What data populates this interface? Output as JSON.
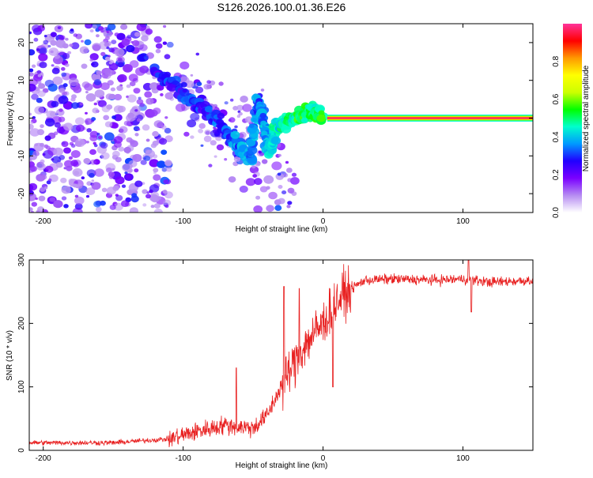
{
  "chart_data": [
    {
      "type": "heatmap",
      "title": "S126.2026.100.01.36.E26",
      "xlabel": "Height of straight line (km)",
      "ylabel": "Frequency (Hz)",
      "xlim": [
        -210,
        150
      ],
      "ylim": [
        -25,
        25
      ],
      "xticks": [
        -200,
        -100,
        0,
        100
      ],
      "yticks": [
        -20,
        -10,
        0,
        10,
        20
      ],
      "colorbar": {
        "label": "Normalized spectral amplitude",
        "range": [
          0,
          1
        ],
        "ticks": [
          "0.0",
          "0.2",
          "0.4",
          "0.6",
          "0.8"
        ],
        "tick_values": [
          0,
          0.2,
          0.4,
          0.6,
          0.8
        ],
        "colors": [
          "#ffffff",
          "#b68cf2",
          "#7a00ff",
          "#2000ff",
          "#0099ff",
          "#00ffcc",
          "#00ff00",
          "#ccff00",
          "#ffff00",
          "#ff9900",
          "#ff0000",
          "#ff3399"
        ]
      },
      "ridge": [
        {
          "x": -120,
          "y": 12,
          "a": 0.35
        },
        {
          "x": -95,
          "y": 5,
          "a": 0.35
        },
        {
          "x": -80,
          "y": 1,
          "a": 0.35
        },
        {
          "x": -65,
          "y": -5,
          "a": 0.4
        },
        {
          "x": -52,
          "y": -11,
          "a": 0.45
        },
        {
          "x": -47,
          "y": 5,
          "a": 0.4
        },
        {
          "x": -42,
          "y": -2,
          "a": 0.45
        },
        {
          "x": -38,
          "y": -9,
          "a": 0.5
        },
        {
          "x": -33,
          "y": -2,
          "a": 0.5
        },
        {
          "x": -25,
          "y": -1,
          "a": 0.55
        },
        {
          "x": -15,
          "y": 0.5,
          "a": 0.6
        },
        {
          "x": -8,
          "y": 2,
          "a": 0.55
        },
        {
          "x": 0,
          "y": 0.5,
          "a": 0.6
        }
      ],
      "tone": {
        "x_start": 3,
        "x_end": 150,
        "freq": 0,
        "amplitude": 1.0
      }
    },
    {
      "type": "line",
      "title": "",
      "xlabel": "Height of straight line (km)",
      "ylabel": "SNR (10 * v/v)",
      "xlim": [
        -210,
        150
      ],
      "ylim": [
        0,
        300
      ],
      "xticks": [
        -200,
        -100,
        0,
        100
      ],
      "yticks": [
        0,
        100,
        200,
        300
      ],
      "color": "#e82020",
      "envelope": {
        "x": [
          -210,
          -150,
          -110,
          -90,
          -70,
          -50,
          -40,
          -30,
          -20,
          -10,
          0,
          10,
          20,
          30,
          50,
          80,
          100,
          120,
          150
        ],
        "y": [
          12,
          12,
          18,
          30,
          40,
          35,
          55,
          100,
          140,
          175,
          200,
          235,
          255,
          268,
          270,
          268,
          270,
          265,
          268
        ]
      },
      "spikes": [
        {
          "x": -62,
          "y": 130
        },
        {
          "x": -28,
          "y": 258
        },
        {
          "x": -17,
          "y": 255
        },
        {
          "x": 7,
          "y": 100
        },
        {
          "x": 104,
          "y": 300
        },
        {
          "x": 106,
          "y": 218
        }
      ]
    }
  ]
}
